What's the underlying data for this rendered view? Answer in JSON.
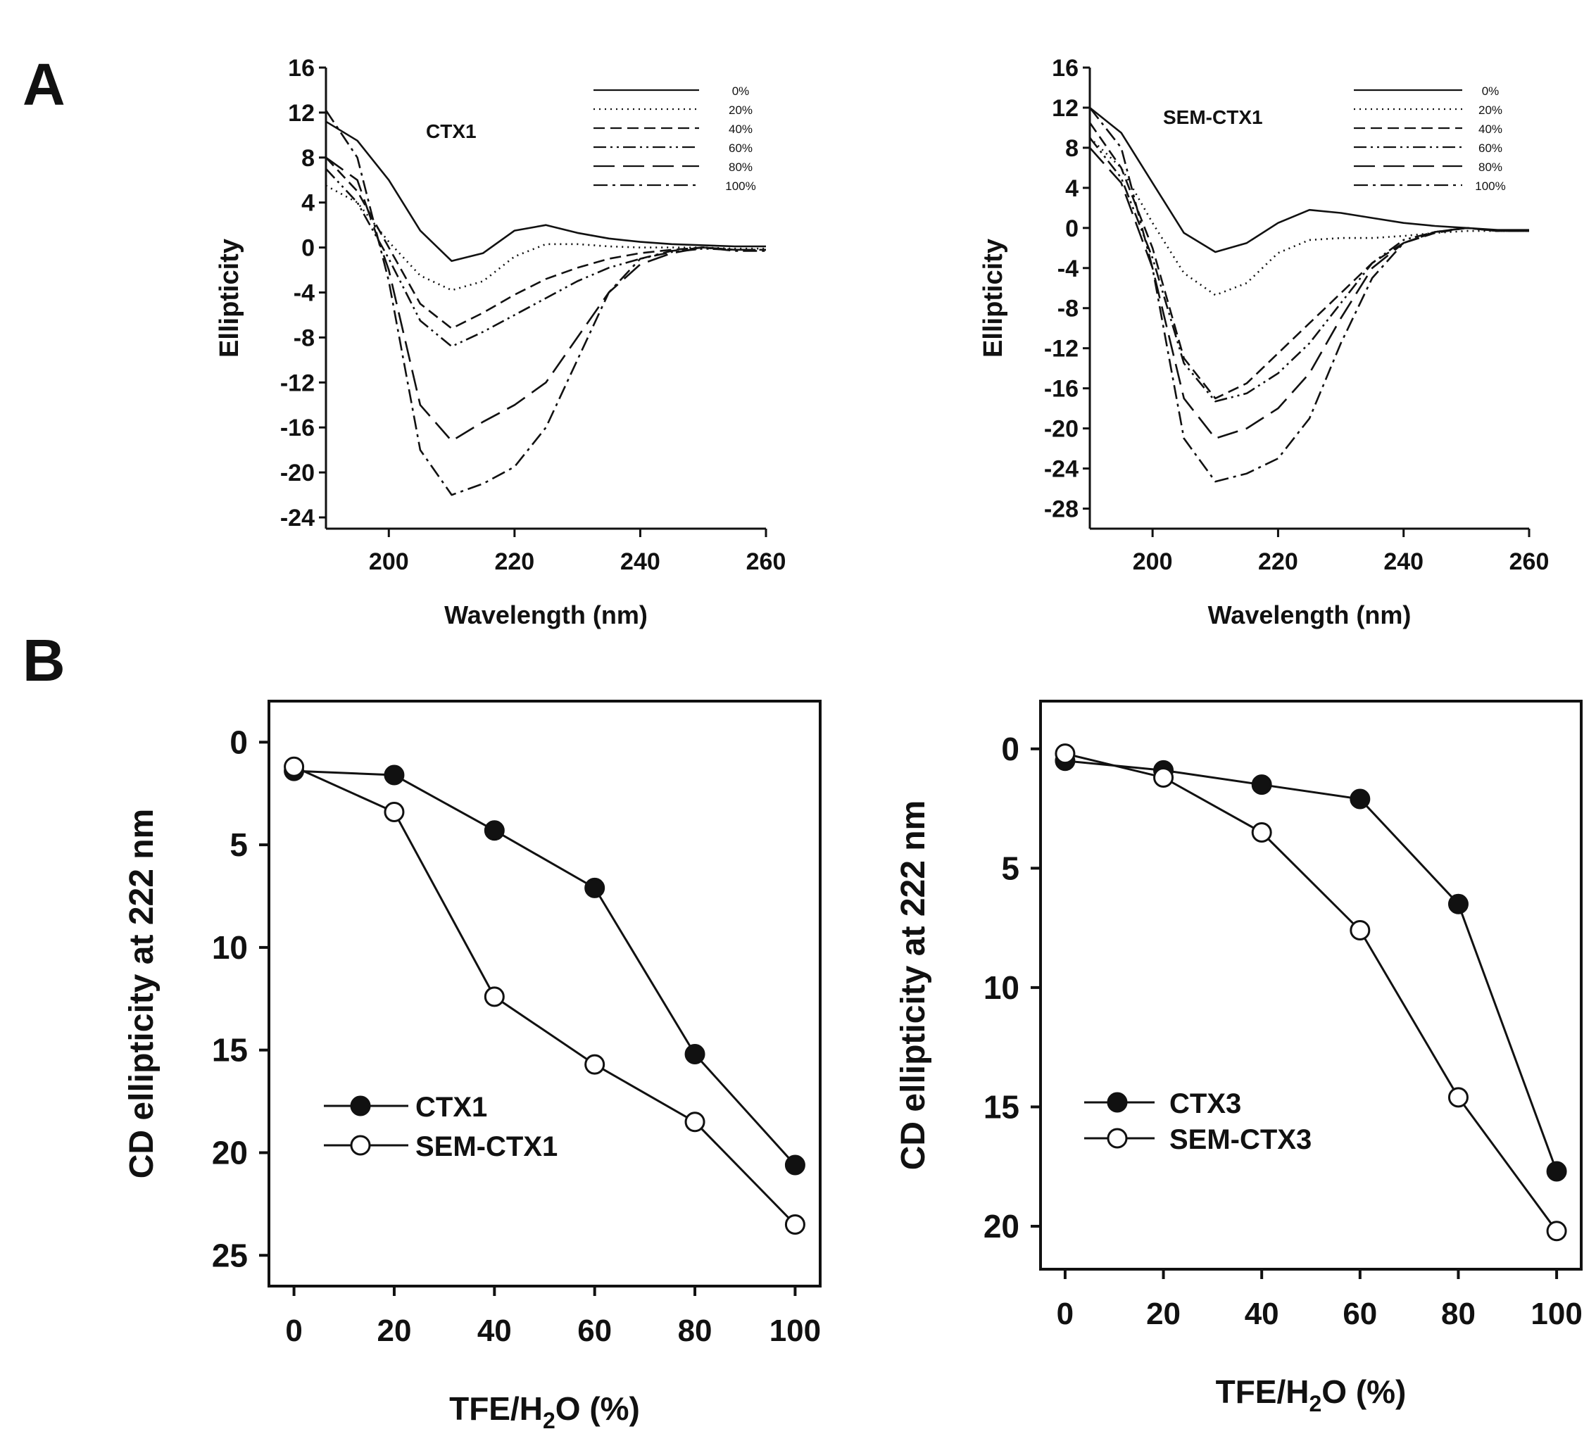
{
  "panels": {
    "A": "A",
    "B": "B"
  },
  "chart_data": [
    {
      "type": "line",
      "title": "CTX1",
      "xlabel": "Wavelength (nm)",
      "ylabel": "Ellipticity",
      "xlim": [
        190,
        260
      ],
      "ylim": [
        -25,
        16
      ],
      "xticks": [
        200,
        220,
        240,
        260
      ],
      "yticks": [
        16,
        12,
        8,
        4,
        0,
        -4,
        -8,
        -12,
        -16,
        -20,
        -24
      ],
      "legend_position": "top-right",
      "series": [
        {
          "name": "0%",
          "dash": "solid",
          "x": [
            190,
            195,
            200,
            205,
            210,
            215,
            220,
            225,
            230,
            235,
            240,
            245,
            250,
            255,
            260
          ],
          "values": [
            11.2,
            9.5,
            6,
            1.5,
            -1.2,
            -0.5,
            1.5,
            2,
            1.3,
            0.8,
            0.5,
            0.3,
            0.2,
            0.1,
            0.1
          ]
        },
        {
          "name": "20%",
          "dash": "dotted",
          "x": [
            190,
            195,
            200,
            205,
            210,
            215,
            220,
            225,
            230,
            235,
            240,
            245,
            250,
            255,
            260
          ],
          "values": [
            5.5,
            4,
            0.5,
            -2.5,
            -3.8,
            -3,
            -0.8,
            0.3,
            0.3,
            0.1,
            0,
            0,
            0,
            -0.1,
            -0.1
          ]
        },
        {
          "name": "40%",
          "dash": "dashed",
          "x": [
            190,
            195,
            200,
            205,
            210,
            215,
            220,
            225,
            230,
            235,
            240,
            245,
            250,
            255,
            260
          ],
          "values": [
            8,
            5,
            0,
            -5,
            -7.2,
            -5.8,
            -4.2,
            -2.8,
            -1.8,
            -1,
            -0.5,
            -0.2,
            0,
            -0.2,
            -0.2
          ]
        },
        {
          "name": "60%",
          "dash": "dash-dot-dot",
          "x": [
            190,
            195,
            200,
            205,
            210,
            215,
            220,
            225,
            230,
            235,
            240,
            245,
            250,
            255,
            260
          ],
          "values": [
            7,
            4,
            -1,
            -6.5,
            -8.8,
            -7.5,
            -6,
            -4.5,
            -3,
            -1.8,
            -1,
            -0.4,
            -0.1,
            -0.2,
            -0.2
          ]
        },
        {
          "name": "80%",
          "dash": "long-dash",
          "x": [
            190,
            195,
            200,
            205,
            210,
            215,
            220,
            225,
            230,
            235,
            240,
            245,
            250,
            255,
            260
          ],
          "values": [
            8,
            6,
            -2,
            -14,
            -17.2,
            -15.5,
            -14,
            -12,
            -8,
            -4,
            -1.5,
            -0.5,
            0,
            -0.2,
            -0.2
          ]
        },
        {
          "name": "100%",
          "dash": "dash-dot",
          "x": [
            190,
            195,
            200,
            205,
            210,
            215,
            220,
            225,
            230,
            235,
            240,
            245,
            250,
            255,
            260
          ],
          "values": [
            12.2,
            8,
            -3,
            -18,
            -22,
            -21,
            -19.5,
            -16,
            -10,
            -4,
            -1,
            -0.3,
            0,
            -0.3,
            -0.3
          ]
        }
      ]
    },
    {
      "type": "line",
      "title": "SEM-CTX1",
      "xlabel": "Wavelength (nm)",
      "ylabel": "Ellipticity",
      "xlim": [
        190,
        260
      ],
      "ylim": [
        -30,
        16
      ],
      "xticks": [
        200,
        220,
        240,
        260
      ],
      "yticks": [
        16,
        12,
        8,
        4,
        0,
        -4,
        -8,
        -12,
        -16,
        -20,
        -24,
        -28
      ],
      "legend_position": "top-right",
      "series": [
        {
          "name": "0%",
          "dash": "solid",
          "x": [
            190,
            195,
            200,
            205,
            210,
            215,
            220,
            225,
            230,
            235,
            240,
            245,
            250,
            255,
            260
          ],
          "values": [
            12,
            9.5,
            4.5,
            -0.5,
            -2.4,
            -1.5,
            0.5,
            1.8,
            1.5,
            1,
            0.5,
            0.2,
            0,
            -0.2,
            -0.2
          ]
        },
        {
          "name": "20%",
          "dash": "dotted",
          "x": [
            190,
            195,
            200,
            205,
            210,
            215,
            220,
            225,
            230,
            235,
            240,
            245,
            250,
            255,
            260
          ],
          "values": [
            9,
            6,
            0.5,
            -4.5,
            -6.7,
            -5.5,
            -2.5,
            -1.2,
            -1,
            -1,
            -0.8,
            -0.5,
            -0.3,
            -0.3,
            -0.3
          ]
        },
        {
          "name": "40%",
          "dash": "dashed",
          "x": [
            190,
            195,
            200,
            205,
            210,
            215,
            220,
            225,
            230,
            235,
            240,
            245,
            250,
            255,
            260
          ],
          "values": [
            10.5,
            6,
            -2,
            -13,
            -17,
            -15.5,
            -12.5,
            -9.5,
            -6.5,
            -3.5,
            -1.5,
            -0.5,
            0,
            -0.3,
            -0.3
          ]
        },
        {
          "name": "60%",
          "dash": "dash-dot-dot",
          "x": [
            190,
            195,
            200,
            205,
            210,
            215,
            220,
            225,
            230,
            235,
            240,
            245,
            250,
            255,
            260
          ],
          "values": [
            9,
            5,
            -3,
            -13.5,
            -17.3,
            -16.5,
            -14.5,
            -11.5,
            -7.5,
            -3.5,
            -1.2,
            -0.4,
            0,
            -0.3,
            -0.3
          ]
        },
        {
          "name": "80%",
          "dash": "long-dash",
          "x": [
            190,
            195,
            200,
            205,
            210,
            215,
            220,
            225,
            230,
            235,
            240,
            245,
            250,
            255,
            260
          ],
          "values": [
            8,
            4.5,
            -4,
            -17,
            -21,
            -20,
            -18,
            -14.5,
            -9,
            -4,
            -1.5,
            -0.4,
            0,
            -0.3,
            -0.3
          ]
        },
        {
          "name": "100%",
          "dash": "dash-dot",
          "x": [
            190,
            195,
            200,
            205,
            210,
            215,
            220,
            225,
            230,
            235,
            240,
            245,
            250,
            255,
            260
          ],
          "values": [
            12,
            8,
            -4,
            -21,
            -25.3,
            -24.5,
            -23,
            -19,
            -11.5,
            -5,
            -1.5,
            -0.4,
            0,
            -0.3,
            -0.3
          ]
        }
      ]
    },
    {
      "type": "line",
      "xlabel": "TFE/H2O (%)",
      "xlabel_parts": [
        "TFE/H",
        "2",
        "O (%)"
      ],
      "ylabel": "CD ellipticity at 222 nm",
      "xlim": [
        -5,
        105
      ],
      "ylim": [
        26.5,
        -2
      ],
      "y_inverted": true,
      "xticks": [
        0,
        20,
        40,
        60,
        80,
        100
      ],
      "yticks": [
        0,
        5,
        10,
        15,
        20,
        25
      ],
      "legend_position": "bottom-left",
      "series": [
        {
          "name": "CTX1",
          "marker": "filled-circle",
          "x": [
            0,
            20,
            40,
            60,
            80,
            100
          ],
          "values": [
            1.4,
            1.6,
            4.3,
            7.1,
            15.2,
            20.6
          ]
        },
        {
          "name": "SEM-CTX1",
          "marker": "open-circle",
          "x": [
            0,
            20,
            40,
            60,
            80,
            100
          ],
          "values": [
            1.2,
            3.4,
            12.4,
            15.7,
            18.5,
            23.5
          ]
        }
      ]
    },
    {
      "type": "line",
      "xlabel": "TFE/H2O (%)",
      "xlabel_parts": [
        "TFE/H",
        "2",
        "O (%)"
      ],
      "ylabel": "CD ellipticity at 222 nm",
      "xlim": [
        -5,
        105
      ],
      "ylim": [
        21.8,
        -2
      ],
      "y_inverted": true,
      "xticks": [
        0,
        20,
        40,
        60,
        80,
        100
      ],
      "yticks": [
        0,
        5,
        10,
        15,
        20
      ],
      "legend_position": "bottom-left",
      "series": [
        {
          "name": "CTX3",
          "marker": "filled-circle",
          "x": [
            0,
            20,
            40,
            60,
            80,
            100
          ],
          "values": [
            0.5,
            0.9,
            1.5,
            2.1,
            6.5,
            17.7
          ]
        },
        {
          "name": "SEM-CTX3",
          "marker": "open-circle",
          "x": [
            0,
            20,
            40,
            60,
            80,
            100
          ],
          "values": [
            0.2,
            1.2,
            3.5,
            7.6,
            14.6,
            20.2
          ]
        }
      ]
    }
  ]
}
